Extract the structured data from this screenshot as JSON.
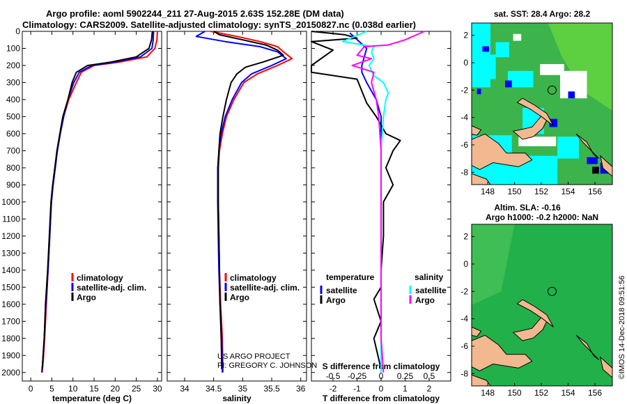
{
  "header": {
    "line1": "Argo profile: aoml 5902244_211 27-Aug-2015 2.63S 152.28E (DM data)",
    "line2": "Climatology: CARS2009. Satellite-adjusted climatology: synTS_20150827.nc (0.038d earlier)"
  },
  "colors": {
    "climatology": "#ff0000",
    "satellite": "#0000ff",
    "argo": "#000000",
    "argo_salinity": "#ff00ff",
    "satellite_salinity": "#00ffff",
    "land": "#f2b890",
    "sst_water": "#3cb44b",
    "sla_water": "#22b04a",
    "ocean_cyan": "#00ffff",
    "ocean_blue": "#0000ff"
  },
  "depth_axis": {
    "ticks": [
      0,
      100,
      200,
      300,
      400,
      500,
      600,
      700,
      800,
      900,
      1000,
      1100,
      1200,
      1300,
      1400,
      1500,
      1600,
      1700,
      1800,
      1900,
      2000
    ]
  },
  "chart_data": [
    {
      "type": "line",
      "panel": "temperature",
      "xlabel": "temperature (deg C)",
      "ylabel": "depth",
      "xlim": [
        -2,
        31
      ],
      "ylim": [
        0,
        2050
      ],
      "xticks": [
        0,
        5,
        10,
        15,
        20,
        25,
        30
      ],
      "legend": [
        "climatology",
        "satellite-adj. clim.",
        "Argo"
      ],
      "series": [
        {
          "name": "climatology",
          "color": "#ff0000",
          "points": [
            [
              30,
              0
            ],
            [
              29.9,
              50
            ],
            [
              29.4,
              100
            ],
            [
              27.5,
              150
            ],
            [
              21,
              180
            ],
            [
              15,
              200
            ],
            [
              12,
              240
            ],
            [
              10.8,
              300
            ],
            [
              9,
              400
            ],
            [
              7.8,
              500
            ],
            [
              7,
              600
            ],
            [
              6.3,
              700
            ],
            [
              5.8,
              800
            ],
            [
              5.3,
              900
            ],
            [
              4.9,
              1000
            ],
            [
              4.5,
              1200
            ],
            [
              4.1,
              1400
            ],
            [
              3.7,
              1600
            ],
            [
              3.3,
              1800
            ],
            [
              2.9,
              1950
            ],
            [
              2.7,
              2000
            ]
          ]
        },
        {
          "name": "satellite-adj. clim.",
          "color": "#0000ff",
          "points": [
            [
              29.1,
              0
            ],
            [
              29,
              50
            ],
            [
              28.7,
              100
            ],
            [
              26,
              150
            ],
            [
              20,
              180
            ],
            [
              14.5,
              200
            ],
            [
              11.5,
              240
            ],
            [
              10.2,
              300
            ],
            [
              8.8,
              400
            ],
            [
              7.8,
              500
            ],
            [
              7,
              600
            ],
            [
              6.3,
              700
            ],
            [
              5.8,
              800
            ],
            [
              5.3,
              900
            ],
            [
              4.9,
              1000
            ],
            [
              4.5,
              1200
            ],
            [
              4.1,
              1400
            ],
            [
              3.6,
              1600
            ],
            [
              3.2,
              1800
            ],
            [
              2.8,
              1950
            ],
            [
              2.6,
              2000
            ]
          ]
        },
        {
          "name": "Argo",
          "color": "#000000",
          "points": [
            [
              28.8,
              0
            ],
            [
              28.6,
              50
            ],
            [
              28,
              100
            ],
            [
              25,
              150
            ],
            [
              19,
              180
            ],
            [
              13.5,
              200
            ],
            [
              10.8,
              240
            ],
            [
              9.8,
              300
            ],
            [
              8.8,
              400
            ],
            [
              7.6,
              500
            ],
            [
              6.9,
              600
            ],
            [
              6.2,
              700
            ],
            [
              5.7,
              800
            ],
            [
              5.2,
              900
            ],
            [
              4.8,
              1000
            ],
            [
              4.4,
              1200
            ],
            [
              4,
              1400
            ],
            [
              3.5,
              1600
            ],
            [
              3.2,
              1800
            ],
            [
              2.8,
              1950
            ],
            [
              2.7,
              1980
            ]
          ]
        }
      ]
    },
    {
      "type": "line",
      "panel": "salinity",
      "xlabel": "salinity",
      "ylabel": "depth",
      "xlim": [
        33.7,
        36.1
      ],
      "ylim": [
        0,
        2050
      ],
      "xticks": [
        34,
        34.5,
        35,
        35.5,
        36
      ],
      "legend": [
        "climatology",
        "satellite-adj. clim.",
        "Argo"
      ],
      "series": [
        {
          "name": "climatology",
          "color": "#ff0000",
          "points": [
            [
              34.45,
              0
            ],
            [
              34.9,
              30
            ],
            [
              35.3,
              60
            ],
            [
              35.6,
              90
            ],
            [
              35.7,
              120
            ],
            [
              35.85,
              160
            ],
            [
              35.6,
              200
            ],
            [
              35.25,
              250
            ],
            [
              35.02,
              300
            ],
            [
              34.85,
              400
            ],
            [
              34.72,
              500
            ],
            [
              34.65,
              600
            ],
            [
              34.6,
              700
            ],
            [
              34.58,
              800
            ],
            [
              34.58,
              1000
            ],
            [
              34.59,
              1200
            ],
            [
              34.6,
              1400
            ],
            [
              34.62,
              1600
            ],
            [
              34.65,
              1800
            ],
            [
              34.66,
              2000
            ]
          ]
        },
        {
          "name": "satellite-adj. clim.",
          "color": "#0000ff",
          "points": [
            [
              34.35,
              0
            ],
            [
              34.2,
              30
            ],
            [
              34.7,
              60
            ],
            [
              35.3,
              90
            ],
            [
              35.6,
              120
            ],
            [
              35.75,
              160
            ],
            [
              35.5,
              200
            ],
            [
              35.15,
              250
            ],
            [
              34.98,
              300
            ],
            [
              34.82,
              400
            ],
            [
              34.7,
              500
            ],
            [
              34.63,
              600
            ],
            [
              34.59,
              700
            ],
            [
              34.57,
              800
            ],
            [
              34.57,
              1000
            ],
            [
              34.58,
              1200
            ],
            [
              34.59,
              1400
            ],
            [
              34.61,
              1600
            ],
            [
              34.64,
              1800
            ],
            [
              34.65,
              2000
            ]
          ]
        },
        {
          "name": "Argo",
          "color": "#000000",
          "points": [
            [
              34.5,
              0
            ],
            [
              34.6,
              20
            ],
            [
              35,
              50
            ],
            [
              35.4,
              80
            ],
            [
              35.6,
              110
            ],
            [
              35.7,
              140
            ],
            [
              35.35,
              180
            ],
            [
              35.05,
              210
            ],
            [
              34.9,
              250
            ],
            [
              34.8,
              300
            ],
            [
              34.72,
              400
            ],
            [
              34.66,
              500
            ],
            [
              34.61,
              600
            ],
            [
              34.59,
              700
            ],
            [
              34.58,
              800
            ],
            [
              34.58,
              1000
            ],
            [
              34.59,
              1200
            ],
            [
              34.6,
              1400
            ],
            [
              34.61,
              1600
            ],
            [
              34.63,
              1800
            ],
            [
              34.64,
              1980
            ]
          ]
        }
      ]
    },
    {
      "type": "line",
      "panel": "difference",
      "xlabel": "T difference from climatology",
      "x2label": "S difference from climatology",
      "ylabel": "depth",
      "xlim": [
        -2.9,
        2.9
      ],
      "ylim": [
        0,
        2050
      ],
      "xticks": [
        -2,
        -1,
        0,
        1,
        2
      ],
      "x2ticks": [
        -0.5,
        -0.25,
        0,
        0.25,
        0.5
      ],
      "legend": {
        "temperature": [
          "satellite",
          "Argo"
        ],
        "salinity": [
          "satellite",
          "Argo"
        ]
      },
      "series": [
        {
          "name": "T satellite",
          "color": "#0000ff",
          "points": [
            [
              -1.3,
              10
            ],
            [
              -0.6,
              100
            ],
            [
              -0.7,
              150
            ],
            [
              -0.8,
              200
            ],
            [
              -0.8,
              240
            ],
            [
              -0.6,
              300
            ],
            [
              -0.2,
              400
            ],
            [
              0,
              500
            ],
            [
              0,
              700
            ],
            [
              0,
              1000
            ],
            [
              0,
              1500
            ],
            [
              0,
              2000
            ]
          ]
        },
        {
          "name": "T Argo",
          "color": "#000000",
          "points": [
            [
              -2.9,
              0
            ],
            [
              -1.5,
              20
            ],
            [
              -1,
              40
            ],
            [
              -2.9,
              60
            ],
            [
              -2,
              110
            ],
            [
              -2.9,
              200
            ],
            [
              -2.9,
              240
            ],
            [
              -1,
              280
            ],
            [
              -0.8,
              350
            ],
            [
              -0.6,
              420
            ],
            [
              -0.2,
              500
            ],
            [
              0.2,
              600
            ],
            [
              0.8,
              640
            ],
            [
              0.5,
              700
            ],
            [
              0.2,
              800
            ],
            [
              0.5,
              900
            ],
            [
              0.1,
              1000
            ],
            [
              0.1,
              1200
            ],
            [
              0,
              1400
            ],
            [
              0,
              1500
            ],
            [
              -0.3,
              1570
            ],
            [
              0,
              1700
            ],
            [
              -0.3,
              1800
            ],
            [
              0,
              1980
            ]
          ]
        },
        {
          "name": "S satellite",
          "color": "#00ffff",
          "points": [
            [
              -0.6,
              0
            ],
            [
              -1.6,
              60
            ],
            [
              -0.3,
              90
            ],
            [
              -0.4,
              120
            ],
            [
              -0.3,
              160
            ],
            [
              -0.5,
              200
            ],
            [
              -0.3,
              260
            ],
            [
              0.1,
              300
            ],
            [
              0.3,
              360
            ],
            [
              0.2,
              400
            ],
            [
              0.1,
              500
            ],
            [
              0,
              700
            ],
            [
              0,
              1000
            ],
            [
              0,
              1500
            ],
            [
              0,
              2000
            ]
          ]
        },
        {
          "name": "S Argo",
          "color": "#ff00ff",
          "points": [
            [
              1.8,
              0
            ],
            [
              1,
              50
            ],
            [
              0.3,
              80
            ],
            [
              -0.7,
              90
            ],
            [
              -1,
              140
            ],
            [
              -0.4,
              160
            ],
            [
              -1.2,
              200
            ],
            [
              -0.3,
              240
            ],
            [
              -0.4,
              300
            ],
            [
              -0.2,
              400
            ],
            [
              -0.1,
              500
            ],
            [
              0,
              700
            ],
            [
              0,
              1000
            ],
            [
              0,
              1500
            ],
            [
              0,
              1800
            ],
            [
              0.1,
              2000
            ]
          ]
        }
      ]
    }
  ],
  "difference_legend": {
    "temperature": "temperature",
    "salinity": "salinity",
    "satellite": "satellite",
    "argo": "Argo"
  },
  "credits": {
    "line1": "US ARGO PROJECT",
    "line2": "PI: GREGORY C. JOHNSON"
  },
  "map_top": {
    "title": "sat. SST: 28.4 Argo: 28.2",
    "yticks": [
      2,
      0,
      -2,
      -4,
      -6,
      -8
    ],
    "xticks": [
      148,
      150,
      152,
      154,
      156
    ]
  },
  "map_bottom": {
    "title1": "Altim. SLA: -0.16",
    "title2": "Argo h1000: -0.2 h2000: NaN",
    "yticks": [
      2,
      0,
      -2,
      -4,
      -6,
      -8
    ],
    "xticks": [
      148,
      150,
      152,
      154,
      156
    ]
  },
  "timestamp": "©IMOS 14-Dec-2018 09:51:56"
}
